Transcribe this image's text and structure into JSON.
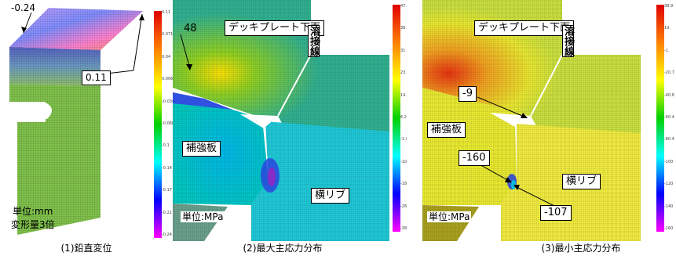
{
  "panels": [
    {
      "caption": "(1)鉛直変位",
      "unit": "単位:mm",
      "extra": "変形量3倍",
      "annotations": [
        "-0.24",
        "0.11"
      ],
      "colorbar_ticks": [
        "0.11",
        "0.071",
        "0.04",
        "0.00667",
        "-0.034",
        "-0.068",
        "-0.1",
        "-0.14",
        "-0.17",
        "-0.21",
        "-0.24"
      ],
      "colorbar_colors": [
        "#e00000",
        "#ff8000",
        "#ffff00",
        "#00d000",
        "#00ffff",
        "#0000ff",
        "#ff00ff"
      ]
    },
    {
      "caption": "(2)最大主応力分布",
      "unit": "単位:MPa",
      "deck": "デッキプレート下面",
      "weld": "溶接線",
      "stiffener": "補強板",
      "rib": "横リブ",
      "annotations": [
        "48"
      ],
      "colorbar_ticks": [
        "47.5",
        "38.3",
        "31",
        "23.5",
        "14.5",
        "6.29",
        "-1.95",
        "-10.2",
        "-18.4",
        "-26.7",
        "-38.9"
      ],
      "colorbar_colors": [
        "#e00000",
        "#ff8000",
        "#ffff00",
        "#00d000",
        "#00ffff",
        "#0000ff",
        "#ff00ff"
      ]
    },
    {
      "caption": "(3)最小主応力分布",
      "unit": "単位:MPa",
      "deck": "デッキプレート下面",
      "weld": "溶接線",
      "stiffener": "補強板",
      "rib": "横リブ",
      "annotations": [
        "-9",
        "-160",
        "-107"
      ],
      "colorbar_ticks": [
        "38.9",
        "19.",
        "-1.",
        "-20.7",
        "-40.6",
        "-60.4",
        "-80.4",
        "-100",
        "-120",
        "-140",
        "-160"
      ],
      "colorbar_colors": [
        "#e00000",
        "#ff8000",
        "#ffff00",
        "#00d000",
        "#00ffff",
        "#0000ff",
        "#ff00ff"
      ]
    }
  ]
}
